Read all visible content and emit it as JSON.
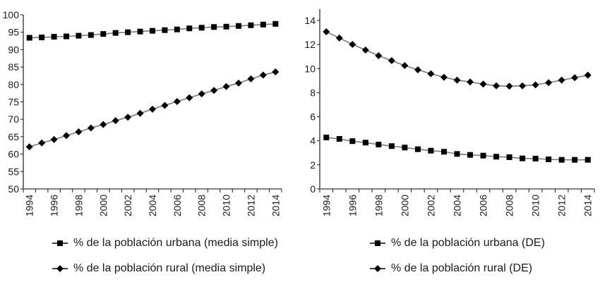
{
  "chart_data": [
    {
      "type": "line",
      "title": "",
      "xlabel": "",
      "ylabel": "",
      "ylim": [
        50,
        100
      ],
      "yticks": [
        50,
        55,
        60,
        65,
        70,
        75,
        80,
        85,
        90,
        95,
        100
      ],
      "x": [
        1994,
        1995,
        1996,
        1997,
        1998,
        1999,
        2000,
        2001,
        2002,
        2003,
        2004,
        2005,
        2006,
        2007,
        2008,
        2009,
        2010,
        2011,
        2012,
        2013,
        2014
      ],
      "xtick_labels": [
        "1994",
        "1996",
        "1998",
        "2000",
        "2002",
        "2004",
        "2006",
        "2008",
        "2010",
        "2012",
        "2014"
      ],
      "grid": false,
      "legend_position": "bottom",
      "series": [
        {
          "name": "% de la población urbana (media simple)",
          "marker": "square",
          "values": [
            93.4,
            93.5,
            93.7,
            93.8,
            94.0,
            94.2,
            94.5,
            94.8,
            95.0,
            95.2,
            95.4,
            95.6,
            95.8,
            96.1,
            96.3,
            96.5,
            96.6,
            96.8,
            97.0,
            97.2,
            97.4
          ]
        },
        {
          "name": "% de la población rural (media simple)",
          "marker": "diamond",
          "values": [
            62.1,
            63.2,
            64.2,
            65.3,
            66.4,
            67.5,
            68.5,
            69.6,
            70.6,
            71.7,
            72.9,
            74.0,
            75.1,
            76.2,
            77.3,
            78.3,
            79.4,
            80.4,
            81.6,
            82.7,
            83.6
          ]
        }
      ]
    },
    {
      "type": "line",
      "title": "",
      "xlabel": "",
      "ylabel": "",
      "ylim": [
        0,
        15
      ],
      "yticks": [
        0,
        2,
        4,
        6,
        8,
        10,
        12,
        14
      ],
      "x": [
        1994,
        1995,
        1996,
        1997,
        1998,
        1999,
        2000,
        2001,
        2002,
        2003,
        2004,
        2005,
        2006,
        2007,
        2008,
        2009,
        2010,
        2011,
        2012,
        2013,
        2014
      ],
      "xtick_labels": [
        "1994",
        "1996",
        "1998",
        "2000",
        "2002",
        "2004",
        "2006",
        "2008",
        "2010",
        "2012",
        "2014"
      ],
      "grid": false,
      "legend_position": "bottom",
      "series": [
        {
          "name": "% de la población urbana (DE)",
          "marker": "square",
          "values": [
            4.28,
            4.16,
            3.97,
            3.85,
            3.69,
            3.56,
            3.44,
            3.3,
            3.18,
            3.09,
            2.91,
            2.83,
            2.77,
            2.68,
            2.64,
            2.54,
            2.52,
            2.46,
            2.42,
            2.42,
            2.42
          ]
        },
        {
          "name": "% de la población rural (DE)",
          "marker": "diamond",
          "values": [
            13.06,
            12.54,
            12.01,
            11.54,
            11.07,
            10.66,
            10.25,
            9.9,
            9.57,
            9.28,
            9.04,
            8.89,
            8.71,
            8.57,
            8.54,
            8.57,
            8.65,
            8.83,
            9.04,
            9.24,
            9.45
          ]
        }
      ]
    }
  ],
  "legends": {
    "left": [
      {
        "label": "% de la población urbana (media simple)",
        "marker": "square"
      },
      {
        "label": "% de la población rural (media simple)",
        "marker": "diamond"
      }
    ],
    "right": [
      {
        "label": "% de la población urbana (DE)",
        "marker": "square"
      },
      {
        "label": "% de la población rural (DE)",
        "marker": "diamond"
      }
    ]
  },
  "colors": {
    "line": "#7a7a7a",
    "marker": "#000000",
    "axis": "#1a1a1a",
    "baseline": "#808080"
  }
}
